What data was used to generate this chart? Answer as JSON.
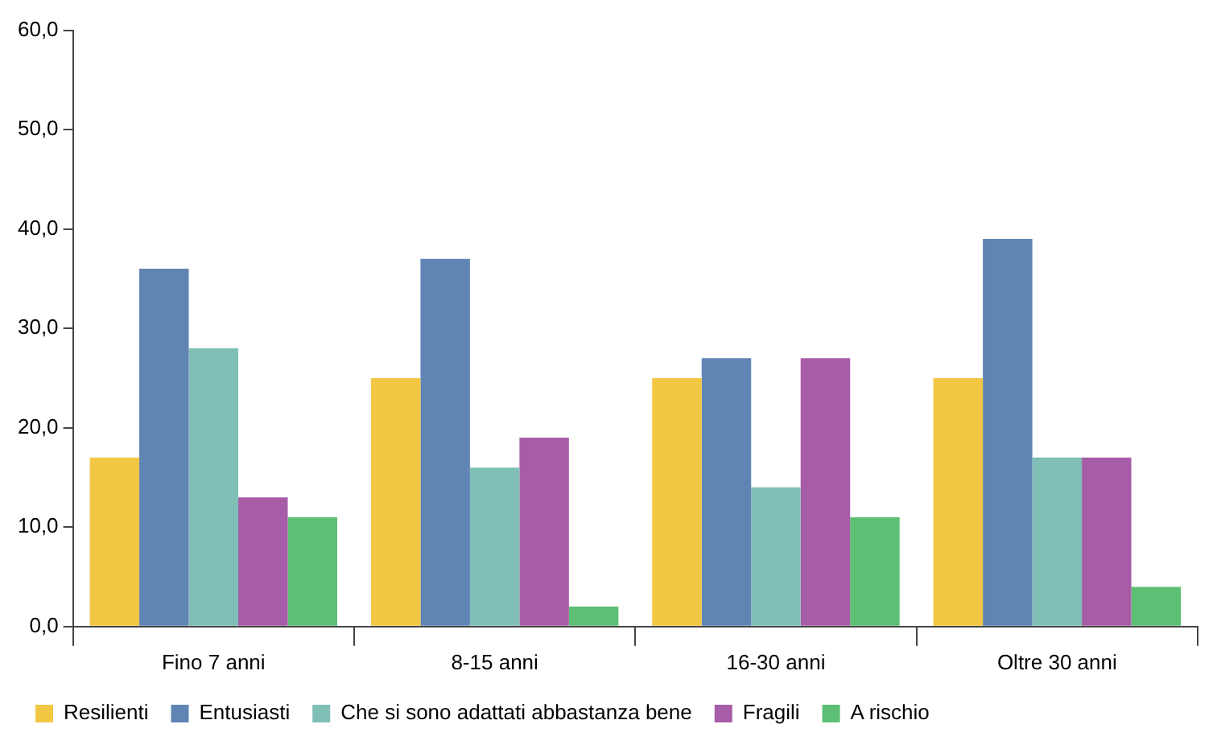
{
  "chart_data": {
    "type": "bar",
    "categories": [
      "Fino 7 anni",
      "8-15 anni",
      "16-30 anni",
      "Oltre 30 anni"
    ],
    "series": [
      {
        "name": "Resilienti",
        "color": "#f2c744",
        "values": [
          17,
          25,
          25,
          25
        ]
      },
      {
        "name": "Entusiasti",
        "color": "#6084b4",
        "values": [
          36,
          37,
          27,
          39
        ]
      },
      {
        "name": "Che si sono adattati abbastanza bene",
        "color": "#7fbfb5",
        "values": [
          28,
          16,
          14,
          17
        ]
      },
      {
        "name": "Fragili",
        "color": "#a75ca8",
        "values": [
          13,
          19,
          27,
          17
        ]
      },
      {
        "name": "A rischio",
        "color": "#5cbf74",
        "values": [
          11,
          2,
          11,
          4
        ]
      }
    ],
    "ylim": [
      0,
      60
    ],
    "yticks": [
      {
        "value": 0,
        "label": "0,0"
      },
      {
        "value": 10,
        "label": "10,0"
      },
      {
        "value": 20,
        "label": "20,0"
      },
      {
        "value": 30,
        "label": "30,0"
      },
      {
        "value": 40,
        "label": "40,0"
      },
      {
        "value": 50,
        "label": "50,0"
      },
      {
        "value": 60,
        "label": "60,0"
      }
    ],
    "grid": false,
    "legend": "bottom"
  }
}
